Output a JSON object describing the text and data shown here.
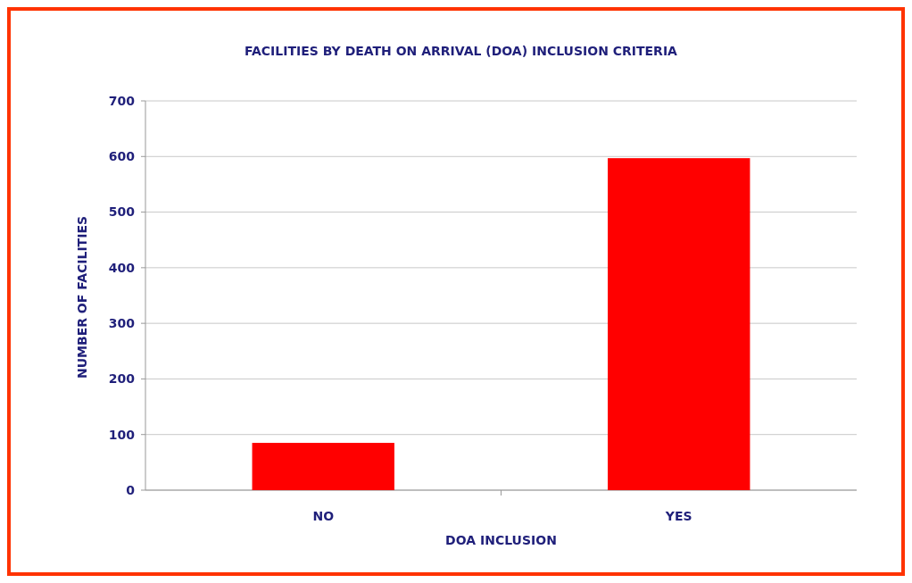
{
  "chart_data": {
    "type": "bar",
    "title": "FACILITIES BY DEATH ON ARRIVAL (DOA) INCLUSION CRITERIA",
    "xlabel": "DOA INCLUSION",
    "ylabel": "NUMBER OF FACILITIES",
    "categories": [
      "NO",
      "YES"
    ],
    "values": [
      85,
      597
    ],
    "color": "#ff0000",
    "ylim": [
      0,
      700
    ],
    "yticks": [
      0,
      100,
      200,
      300,
      400,
      500,
      600,
      700
    ],
    "grid": "y"
  }
}
